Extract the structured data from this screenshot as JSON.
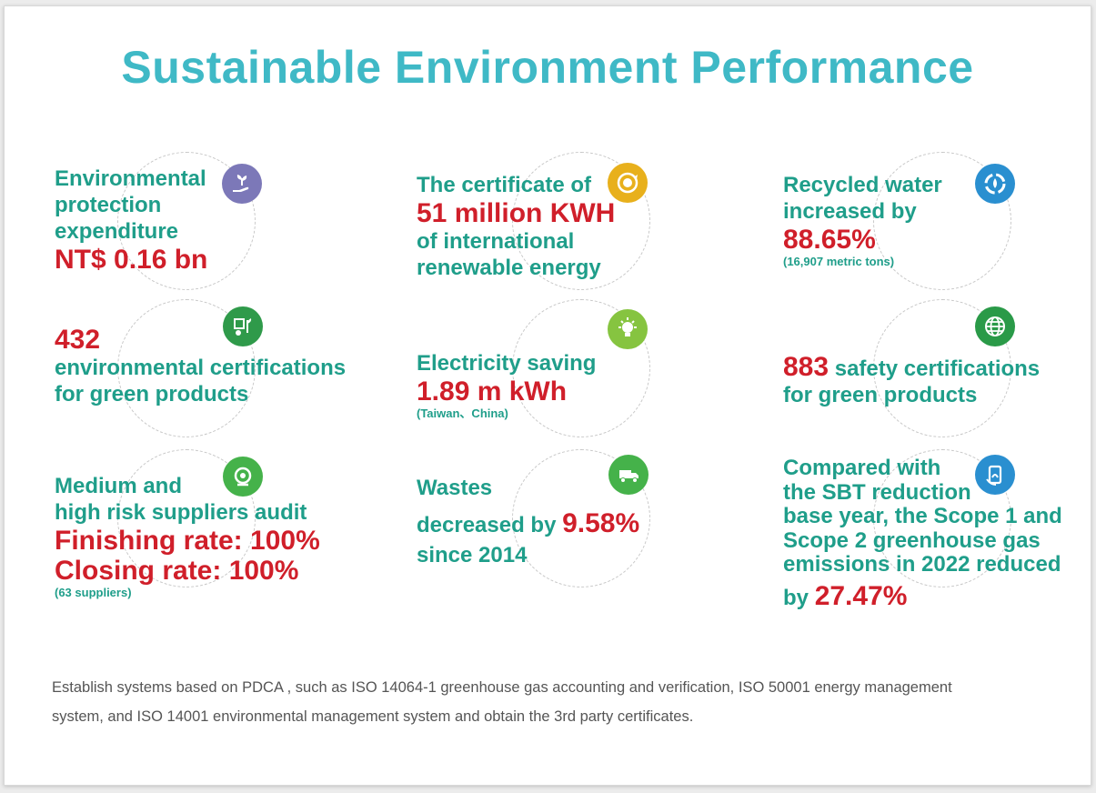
{
  "title": "Sustainable Environment Performance",
  "colors": {
    "heading": "#3fb9c6",
    "text_green": "#1f9e8a",
    "highlight_red": "#d01f2a",
    "body_gray": "#555555"
  },
  "items": [
    {
      "icon": "hand-plant-icon",
      "icon_color": "#7c78b8",
      "lines": [
        "Environmental",
        "protection",
        "expenditure"
      ],
      "value": "NT$ 0.16 bn"
    },
    {
      "icon": "renewable-energy-icon",
      "icon_color": "#e8b01c",
      "line1": "The certificate of",
      "value": "51 million KWH",
      "lines": [
        "of international",
        "renewable energy"
      ]
    },
    {
      "icon": "water-cycle-icon",
      "icon_color": "#2a8fd0",
      "lines": [
        "Recycled water",
        "increased by"
      ],
      "value": "88.65%",
      "note": "(16,907 metric tons)"
    },
    {
      "icon": "eco-certificate-icon",
      "icon_color": "#2f9a4a",
      "value": "432",
      "lines": [
        "environmental certifications",
        "for green products"
      ]
    },
    {
      "icon": "light-bulb-icon",
      "icon_color": "#86c440",
      "line1": "Electricity saving",
      "value": "1.89 m kWh",
      "note": "(Taiwan、China)"
    },
    {
      "icon": "globe-icon",
      "icon_color": "#2a9a48",
      "value": "883",
      "line_after": " safety certifications",
      "lines": [
        "for green products"
      ]
    },
    {
      "icon": "supplier-audit-icon",
      "icon_color": "#45b24a",
      "lines": [
        "Medium and",
        "high risk suppliers audit"
      ],
      "value1": "Finishing rate: 100%",
      "value2": "Closing rate: 100%",
      "note": "(63 suppliers)"
    },
    {
      "icon": "waste-truck-icon",
      "icon_color": "#45b24a",
      "line1": "Wastes",
      "line2": "decreased by ",
      "value": "9.58%",
      "line3": "since 2014"
    },
    {
      "icon": "emission-reduction-icon",
      "icon_color": "#2a8fd0",
      "lines": [
        "Compared with",
        "the SBT reduction",
        "base year, the Scope 1 and",
        "Scope 2 greenhouse gas",
        "emissions in 2022 reduced"
      ],
      "last_prefix": "by ",
      "value": "27.47%"
    }
  ],
  "footer": {
    "line1": "Establish systems based on PDCA , such as ISO 14064-1 greenhouse gas accounting and verification, ISO 50001 energy management",
    "line2": "system, and ISO 14001 environmental management system and obtain the 3rd party certificates."
  }
}
